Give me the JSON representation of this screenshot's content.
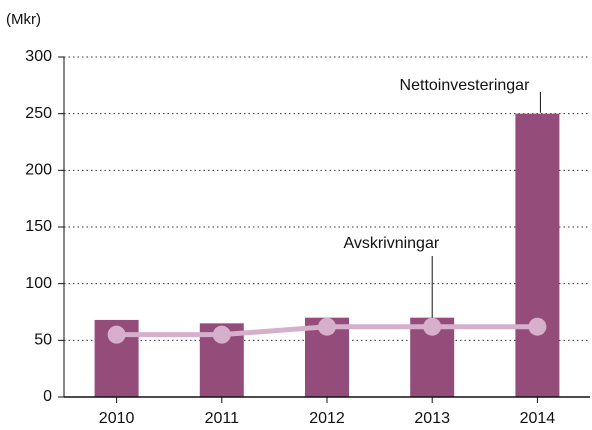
{
  "chart_data": {
    "type": "bar",
    "y_label": "(Mkr)",
    "categories": [
      "2010",
      "2011",
      "2012",
      "2013",
      "2014"
    ],
    "series": [
      {
        "name": "Nettoinvesteringar",
        "type": "bar",
        "color": "#944c7a",
        "values": [
          68,
          65,
          70,
          70,
          250
        ]
      },
      {
        "name": "Avskrivningar",
        "type": "line",
        "color": "#d6afcd",
        "values": [
          55,
          55,
          62,
          62,
          62
        ]
      }
    ],
    "ylim": [
      0,
      300
    ],
    "yticks": [
      0,
      50,
      100,
      150,
      200,
      250,
      300
    ],
    "grid": true
  }
}
